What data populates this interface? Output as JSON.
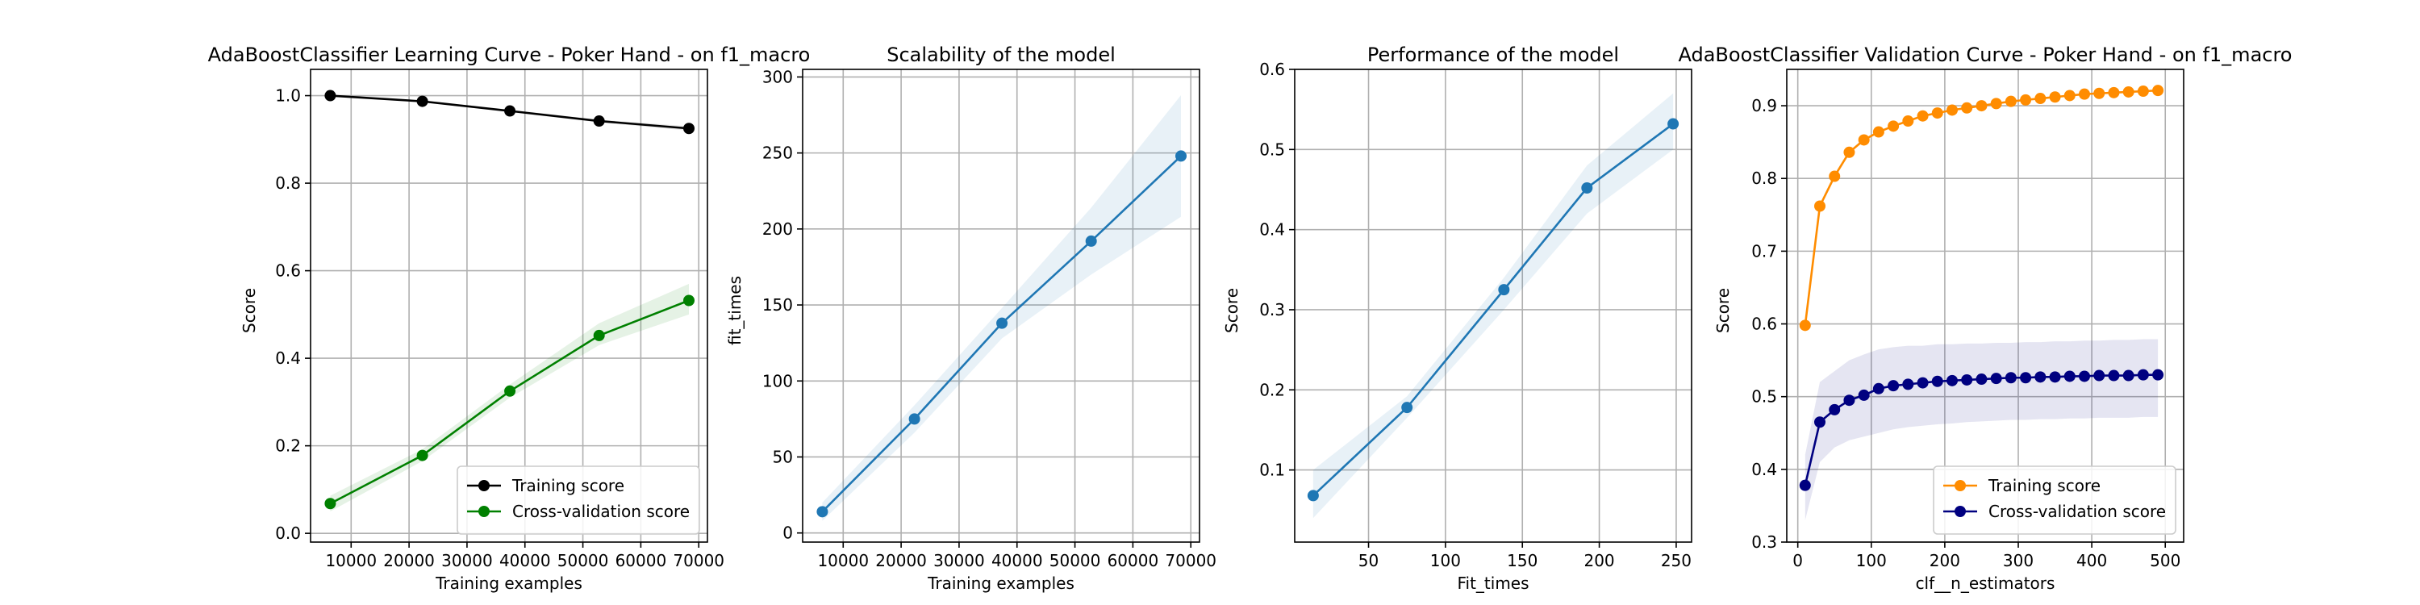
{
  "chart_data": [
    {
      "type": "line",
      "title": "AdaBoostClassifier Learning Curve - Poker Hand - on f1_macro",
      "xlabel": "Training examples",
      "ylabel": "Score",
      "xlim": [
        3000,
        71500
      ],
      "ylim": [
        -0.02,
        1.06
      ],
      "xticks": [
        10000,
        20000,
        30000,
        40000,
        50000,
        60000,
        70000
      ],
      "yticks": [
        0.0,
        0.2,
        0.4,
        0.6,
        0.8,
        1.0
      ],
      "ytick_format": 1,
      "grid": true,
      "legend": "lower-right",
      "x": [
        6400,
        22300,
        37400,
        52800,
        68300
      ],
      "series": [
        {
          "name": "Training score",
          "color": "#000000",
          "values": [
            1.0,
            0.987,
            0.965,
            0.942,
            0.925
          ],
          "band": [
            [
              1.0,
              1.0
            ],
            [
              0.985,
              0.989
            ],
            [
              0.962,
              0.968
            ],
            [
              0.939,
              0.945
            ],
            [
              0.92,
              0.93
            ]
          ]
        },
        {
          "name": "Cross-validation score",
          "color": "#008000",
          "values": [
            0.068,
            0.178,
            0.325,
            0.452,
            0.532
          ],
          "band": [
            [
              0.05,
              0.086
            ],
            [
              0.165,
              0.192
            ],
            [
              0.31,
              0.34
            ],
            [
              0.43,
              0.48
            ],
            [
              0.5,
              0.57
            ]
          ]
        }
      ]
    },
    {
      "type": "line",
      "title": "Scalability of the model",
      "xlabel": "Training examples",
      "ylabel": "fit_times",
      "xlim": [
        3000,
        71500
      ],
      "ylim": [
        -6,
        305
      ],
      "xticks": [
        10000,
        20000,
        30000,
        40000,
        50000,
        60000,
        70000
      ],
      "yticks": [
        0,
        50,
        100,
        150,
        200,
        250,
        300
      ],
      "ytick_format": 0,
      "grid": true,
      "x": [
        6400,
        22300,
        37400,
        52800,
        68300
      ],
      "series": [
        {
          "color": "#1f77b4",
          "values": [
            14,
            75,
            138,
            192,
            248
          ],
          "band": [
            [
              8,
              20
            ],
            [
              66,
              84
            ],
            [
              128,
              148
            ],
            [
              170,
              214
            ],
            [
              208,
              288
            ]
          ]
        }
      ]
    },
    {
      "type": "line",
      "title": "Performance of the model",
      "xlabel": "Fit_times",
      "ylabel": "Score",
      "xlim": [
        2,
        260
      ],
      "ylim": [
        0.01,
        0.6
      ],
      "xticks": [
        50,
        100,
        150,
        200,
        250
      ],
      "yticks": [
        0.1,
        0.2,
        0.3,
        0.4,
        0.5,
        0.6
      ],
      "ytick_format": 1,
      "grid": true,
      "x": [
        14,
        75,
        138,
        192,
        248
      ],
      "series": [
        {
          "color": "#1f77b4",
          "values": [
            0.068,
            0.178,
            0.325,
            0.452,
            0.532
          ],
          "band": [
            [
              0.04,
              0.1
            ],
            [
              0.165,
              0.192
            ],
            [
              0.3,
              0.34
            ],
            [
              0.42,
              0.48
            ],
            [
              0.5,
              0.57
            ]
          ]
        }
      ]
    },
    {
      "type": "line",
      "title": "AdaBoostClassifier Validation Curve - Poker Hand - on f1_macro",
      "xlabel": "clf__n_estimators",
      "ylabel": "Score",
      "xlim": [
        -15,
        525
      ],
      "ylim": [
        0.3,
        0.95
      ],
      "xticks": [
        0,
        100,
        200,
        300,
        400,
        500
      ],
      "yticks": [
        0.3,
        0.4,
        0.5,
        0.6,
        0.7,
        0.8,
        0.9
      ],
      "ytick_format": 1,
      "grid": true,
      "legend": "lower-right",
      "x": [
        10,
        30,
        50,
        70,
        90,
        110,
        130,
        150,
        170,
        190,
        210,
        230,
        250,
        270,
        290,
        310,
        330,
        350,
        370,
        390,
        410,
        430,
        450,
        470,
        490
      ],
      "series": [
        {
          "name": "Training score",
          "color": "#ff8c00",
          "values": [
            0.598,
            0.762,
            0.803,
            0.836,
            0.853,
            0.864,
            0.872,
            0.879,
            0.886,
            0.89,
            0.894,
            0.897,
            0.9,
            0.903,
            0.906,
            0.908,
            0.91,
            0.912,
            0.914,
            0.916,
            0.917,
            0.918,
            0.919,
            0.92,
            0.921
          ]
        },
        {
          "name": "Cross-validation score",
          "color": "#000080",
          "values": [
            0.378,
            0.465,
            0.482,
            0.495,
            0.502,
            0.511,
            0.515,
            0.517,
            0.519,
            0.521,
            0.522,
            0.523,
            0.524,
            0.525,
            0.526,
            0.526,
            0.527,
            0.527,
            0.528,
            0.528,
            0.529,
            0.529,
            0.529,
            0.53,
            0.53
          ],
          "band": [
            [
              0.33,
              0.42
            ],
            [
              0.41,
              0.52
            ],
            [
              0.43,
              0.535
            ],
            [
              0.44,
              0.55
            ],
            [
              0.445,
              0.558
            ],
            [
              0.45,
              0.565
            ],
            [
              0.455,
              0.568
            ],
            [
              0.458,
              0.57
            ],
            [
              0.46,
              0.57
            ],
            [
              0.462,
              0.572
            ],
            [
              0.463,
              0.572
            ],
            [
              0.465,
              0.573
            ],
            [
              0.466,
              0.573
            ],
            [
              0.467,
              0.574
            ],
            [
              0.468,
              0.574
            ],
            [
              0.468,
              0.575
            ],
            [
              0.469,
              0.575
            ],
            [
              0.469,
              0.576
            ],
            [
              0.47,
              0.576
            ],
            [
              0.47,
              0.577
            ],
            [
              0.471,
              0.577
            ],
            [
              0.471,
              0.578
            ],
            [
              0.471,
              0.578
            ],
            [
              0.472,
              0.579
            ],
            [
              0.472,
              0.579
            ]
          ]
        }
      ]
    }
  ]
}
